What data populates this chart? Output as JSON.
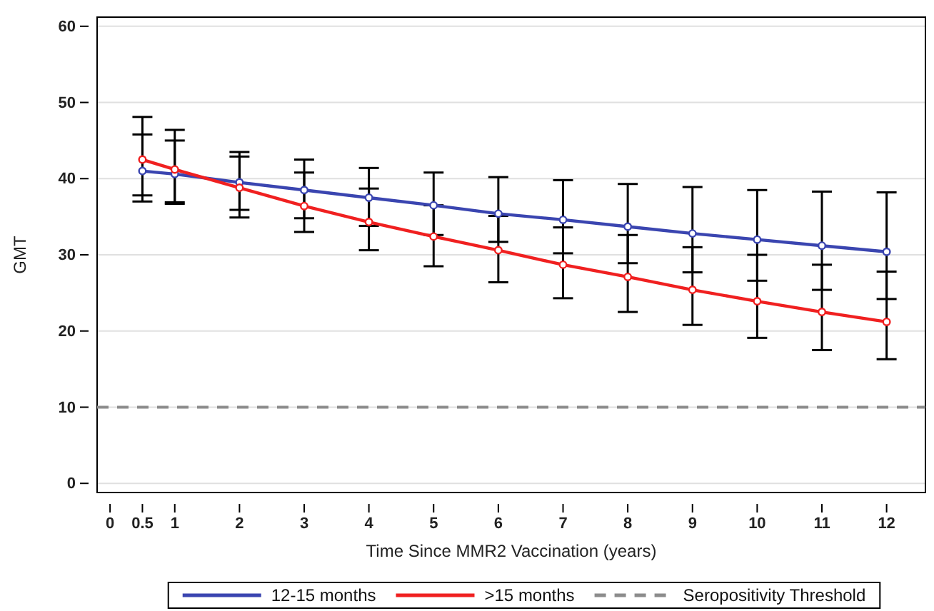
{
  "chart_data": {
    "type": "line",
    "xlabel": "Time Since MMR2 Vaccination (years)",
    "ylabel": "GMT",
    "x": [
      0.5,
      1,
      2,
      3,
      4,
      5,
      6,
      7,
      8,
      9,
      10,
      11,
      12
    ],
    "series": [
      {
        "name": "12-15 months",
        "color": "#3a45b0",
        "values": [
          41.0,
          40.6,
          39.5,
          38.5,
          37.5,
          36.5,
          35.4,
          34.6,
          33.7,
          32.8,
          32.0,
          31.2,
          30.4
        ],
        "errors": [
          [
            37.8,
            45.8
          ],
          [
            36.9,
            45.0
          ],
          [
            35.9,
            43.5
          ],
          [
            34.8,
            42.5
          ],
          [
            33.8,
            41.4
          ],
          [
            32.6,
            40.8
          ],
          [
            31.7,
            40.2
          ],
          [
            30.2,
            39.8
          ],
          [
            28.9,
            39.3
          ],
          [
            27.7,
            38.9
          ],
          [
            26.6,
            38.5
          ],
          [
            25.4,
            38.3
          ],
          [
            24.2,
            38.2
          ]
        ]
      },
      {
        "name": ">15 months",
        "color": "#f02020",
        "values": [
          42.5,
          41.2,
          38.8,
          36.4,
          34.3,
          32.4,
          30.6,
          28.7,
          27.1,
          25.4,
          23.9,
          22.5,
          21.2
        ],
        "errors": [
          [
            37.0,
            48.1
          ],
          [
            36.7,
            46.4
          ],
          [
            34.9,
            42.9
          ],
          [
            33.0,
            40.8
          ],
          [
            30.6,
            38.7
          ],
          [
            28.5,
            36.5
          ],
          [
            26.4,
            35.1
          ],
          [
            24.3,
            33.6
          ],
          [
            22.5,
            32.6
          ],
          [
            20.8,
            31.0
          ],
          [
            19.1,
            30.0
          ],
          [
            17.5,
            28.7
          ],
          [
            16.3,
            27.8
          ]
        ]
      }
    ],
    "xlim": [
      -0.2,
      12.6
    ],
    "xticks": [
      0,
      0.5,
      1,
      2,
      3,
      4,
      5,
      6,
      7,
      8,
      9,
      10,
      11,
      12
    ],
    "ylim": [
      -1.2,
      61.2
    ],
    "yticks": [
      0,
      10,
      20,
      30,
      40,
      50,
      60
    ],
    "ref_lines": [
      {
        "axis": "y",
        "value": 10,
        "label": "Seropositivity Threshold",
        "color": "#8c8c8c",
        "line_style": "dashed"
      }
    ],
    "grid": "y",
    "legend": "bottom",
    "marker": "circle",
    "line_style": "solid"
  }
}
